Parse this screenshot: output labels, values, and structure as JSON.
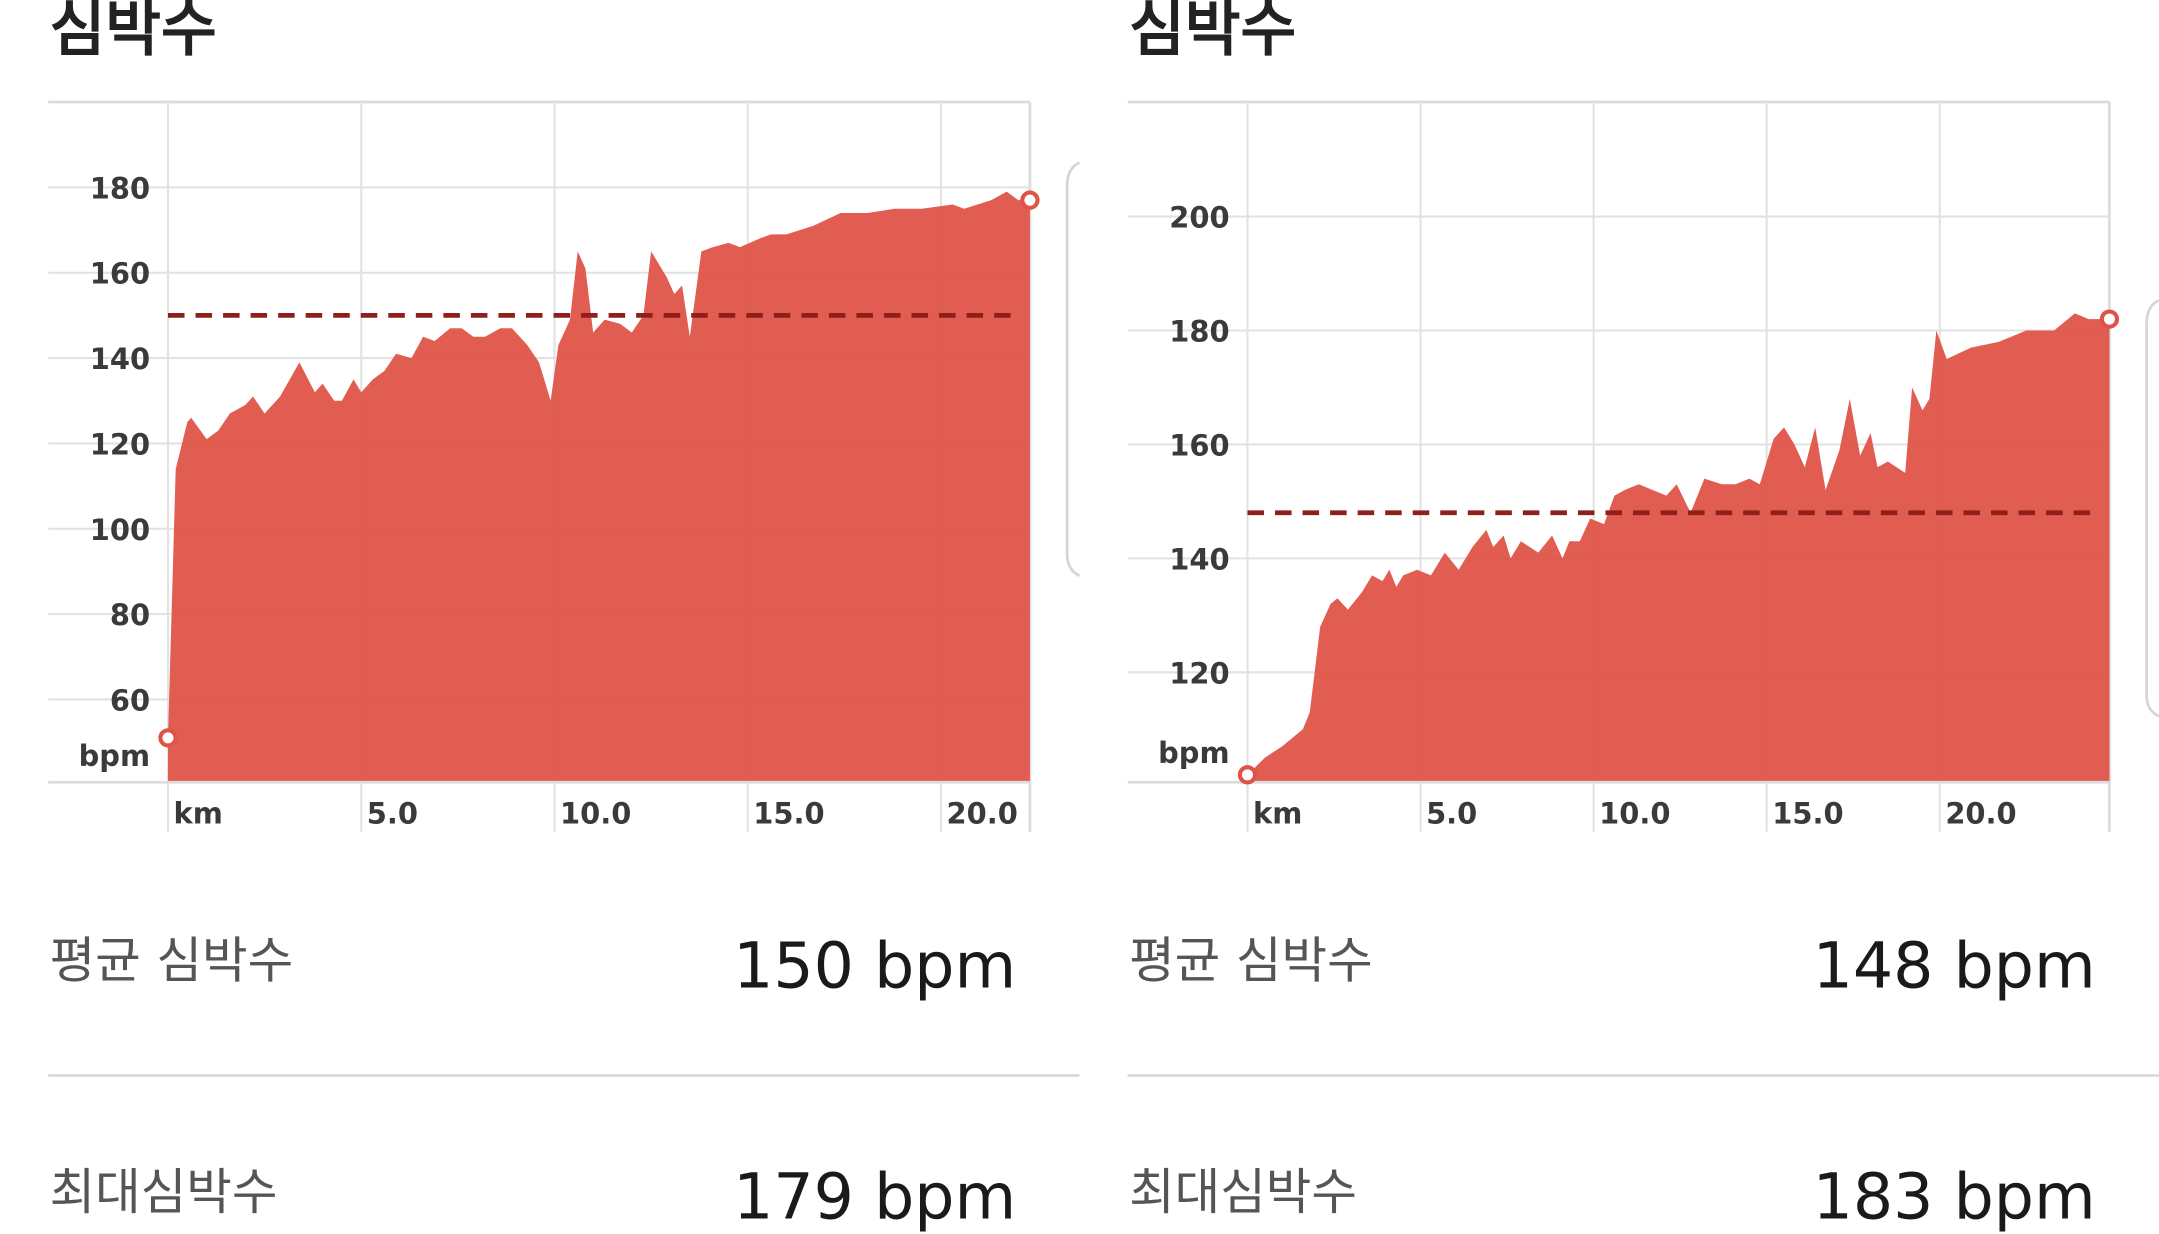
{
  "chart_data": [
    {
      "type": "area",
      "title": "심박수",
      "color": "#df5448",
      "average_line": 150,
      "average_color": "#8e1f1a",
      "x": [
        0,
        0.2,
        0.5,
        0.6,
        1.0,
        1.3,
        1.6,
        2.0,
        2.2,
        2.5,
        2.9,
        3.4,
        3.8,
        4.0,
        4.3,
        4.5,
        4.8,
        5.0,
        5.3,
        5.6,
        5.9,
        6.3,
        6.6,
        6.9,
        7.3,
        7.6,
        7.9,
        8.2,
        8.6,
        8.9,
        9.3,
        9.6,
        9.9,
        10.1,
        10.4,
        10.6,
        10.8,
        11.0,
        11.3,
        11.7,
        12.0,
        12.3,
        12.5,
        12.9,
        13.1,
        13.3,
        13.5,
        13.8,
        14.1,
        14.5,
        14.8,
        15.3,
        15.6,
        16.0,
        16.7,
        17.4,
        18.1,
        18.8,
        19.5,
        20.3,
        20.6,
        21.3,
        21.7,
        22.0,
        22.3
      ],
      "values": [
        51,
        114,
        125,
        126,
        121,
        123,
        127,
        129,
        131,
        127,
        131,
        139,
        132,
        134,
        130,
        130,
        135,
        132,
        135,
        137,
        141,
        140,
        145,
        144,
        147,
        147,
        145,
        145,
        147,
        147,
        143,
        139,
        130,
        143,
        149,
        165,
        161,
        146,
        149,
        148,
        146,
        150,
        165,
        159,
        155,
        157,
        145,
        165,
        166,
        167,
        166,
        168,
        169,
        169,
        171,
        174,
        174,
        175,
        175,
        176,
        175,
        177,
        179,
        177,
        177
      ],
      "xlim": [
        0,
        22.3
      ],
      "ylim": [
        40.6,
        200
      ],
      "xticks": [
        {
          "value": 0,
          "label": "km"
        },
        {
          "value": 5,
          "label": "5.0"
        },
        {
          "value": 10,
          "label": "10.0"
        },
        {
          "value": 15,
          "label": "15.0"
        },
        {
          "value": 20,
          "label": "20.0"
        }
      ],
      "yticks": [
        {
          "value": 47,
          "label": "bpm"
        },
        60,
        80,
        100,
        120,
        140,
        160,
        180
      ]
    },
    {
      "type": "area",
      "title": "심박수",
      "color": "#df5448",
      "average_line": 148,
      "average_color": "#8e1f1a",
      "x": [
        0,
        0.5,
        1.0,
        1.6,
        1.8,
        2.1,
        2.4,
        2.6,
        2.9,
        3.3,
        3.6,
        3.9,
        4.1,
        4.3,
        4.5,
        4.9,
        5.3,
        5.7,
        6.1,
        6.5,
        6.9,
        7.1,
        7.4,
        7.6,
        7.9,
        8.4,
        8.8,
        9.1,
        9.3,
        9.6,
        9.9,
        10.3,
        10.6,
        10.9,
        11.3,
        11.7,
        12.1,
        12.4,
        12.8,
        13.2,
        13.7,
        14.1,
        14.5,
        14.8,
        15.2,
        15.5,
        15.8,
        16.1,
        16.4,
        16.7,
        17.1,
        17.4,
        17.7,
        18.0,
        18.2,
        18.5,
        19.0,
        19.2,
        19.5,
        19.7,
        19.9,
        20.2,
        20.9,
        21.7,
        22.5,
        23.3,
        23.9,
        24.3,
        24.9
      ],
      "values": [
        102,
        105,
        107,
        110,
        113,
        128,
        132,
        133,
        131,
        134,
        137,
        136,
        138,
        135,
        137,
        138,
        137,
        141,
        138,
        142,
        145,
        142,
        144,
        140,
        143,
        141,
        144,
        140,
        143,
        143,
        147,
        146,
        151,
        152,
        153,
        152,
        151,
        153,
        148,
        154,
        153,
        153,
        154,
        153,
        161,
        163,
        160,
        156,
        163,
        152,
        159,
        168,
        158,
        162,
        156,
        157,
        155,
        170,
        166,
        168,
        180,
        175,
        177,
        178,
        180,
        180,
        183,
        182,
        182
      ],
      "xlim": [
        0,
        24.9
      ],
      "ylim": [
        100.7,
        220.1
      ],
      "xticks": [
        {
          "value": 0,
          "label": "km"
        },
        {
          "value": 5,
          "label": "5.0"
        },
        {
          "value": 10,
          "label": "10.0"
        },
        {
          "value": 15,
          "label": "15.0"
        },
        {
          "value": 20,
          "label": "20.0"
        }
      ],
      "yticks": [
        {
          "value": 106,
          "label": "bpm"
        },
        120,
        140,
        160,
        180,
        200
      ]
    }
  ],
  "stats": [
    [
      {
        "label": "평균 심박수",
        "value": "150 bpm"
      },
      {
        "label": "최대심박수",
        "value": "179 bpm"
      }
    ],
    [
      {
        "label": "평균 심박수",
        "value": "148 bpm"
      },
      {
        "label": "최대심박수",
        "value": "183 bpm"
      }
    ]
  ]
}
